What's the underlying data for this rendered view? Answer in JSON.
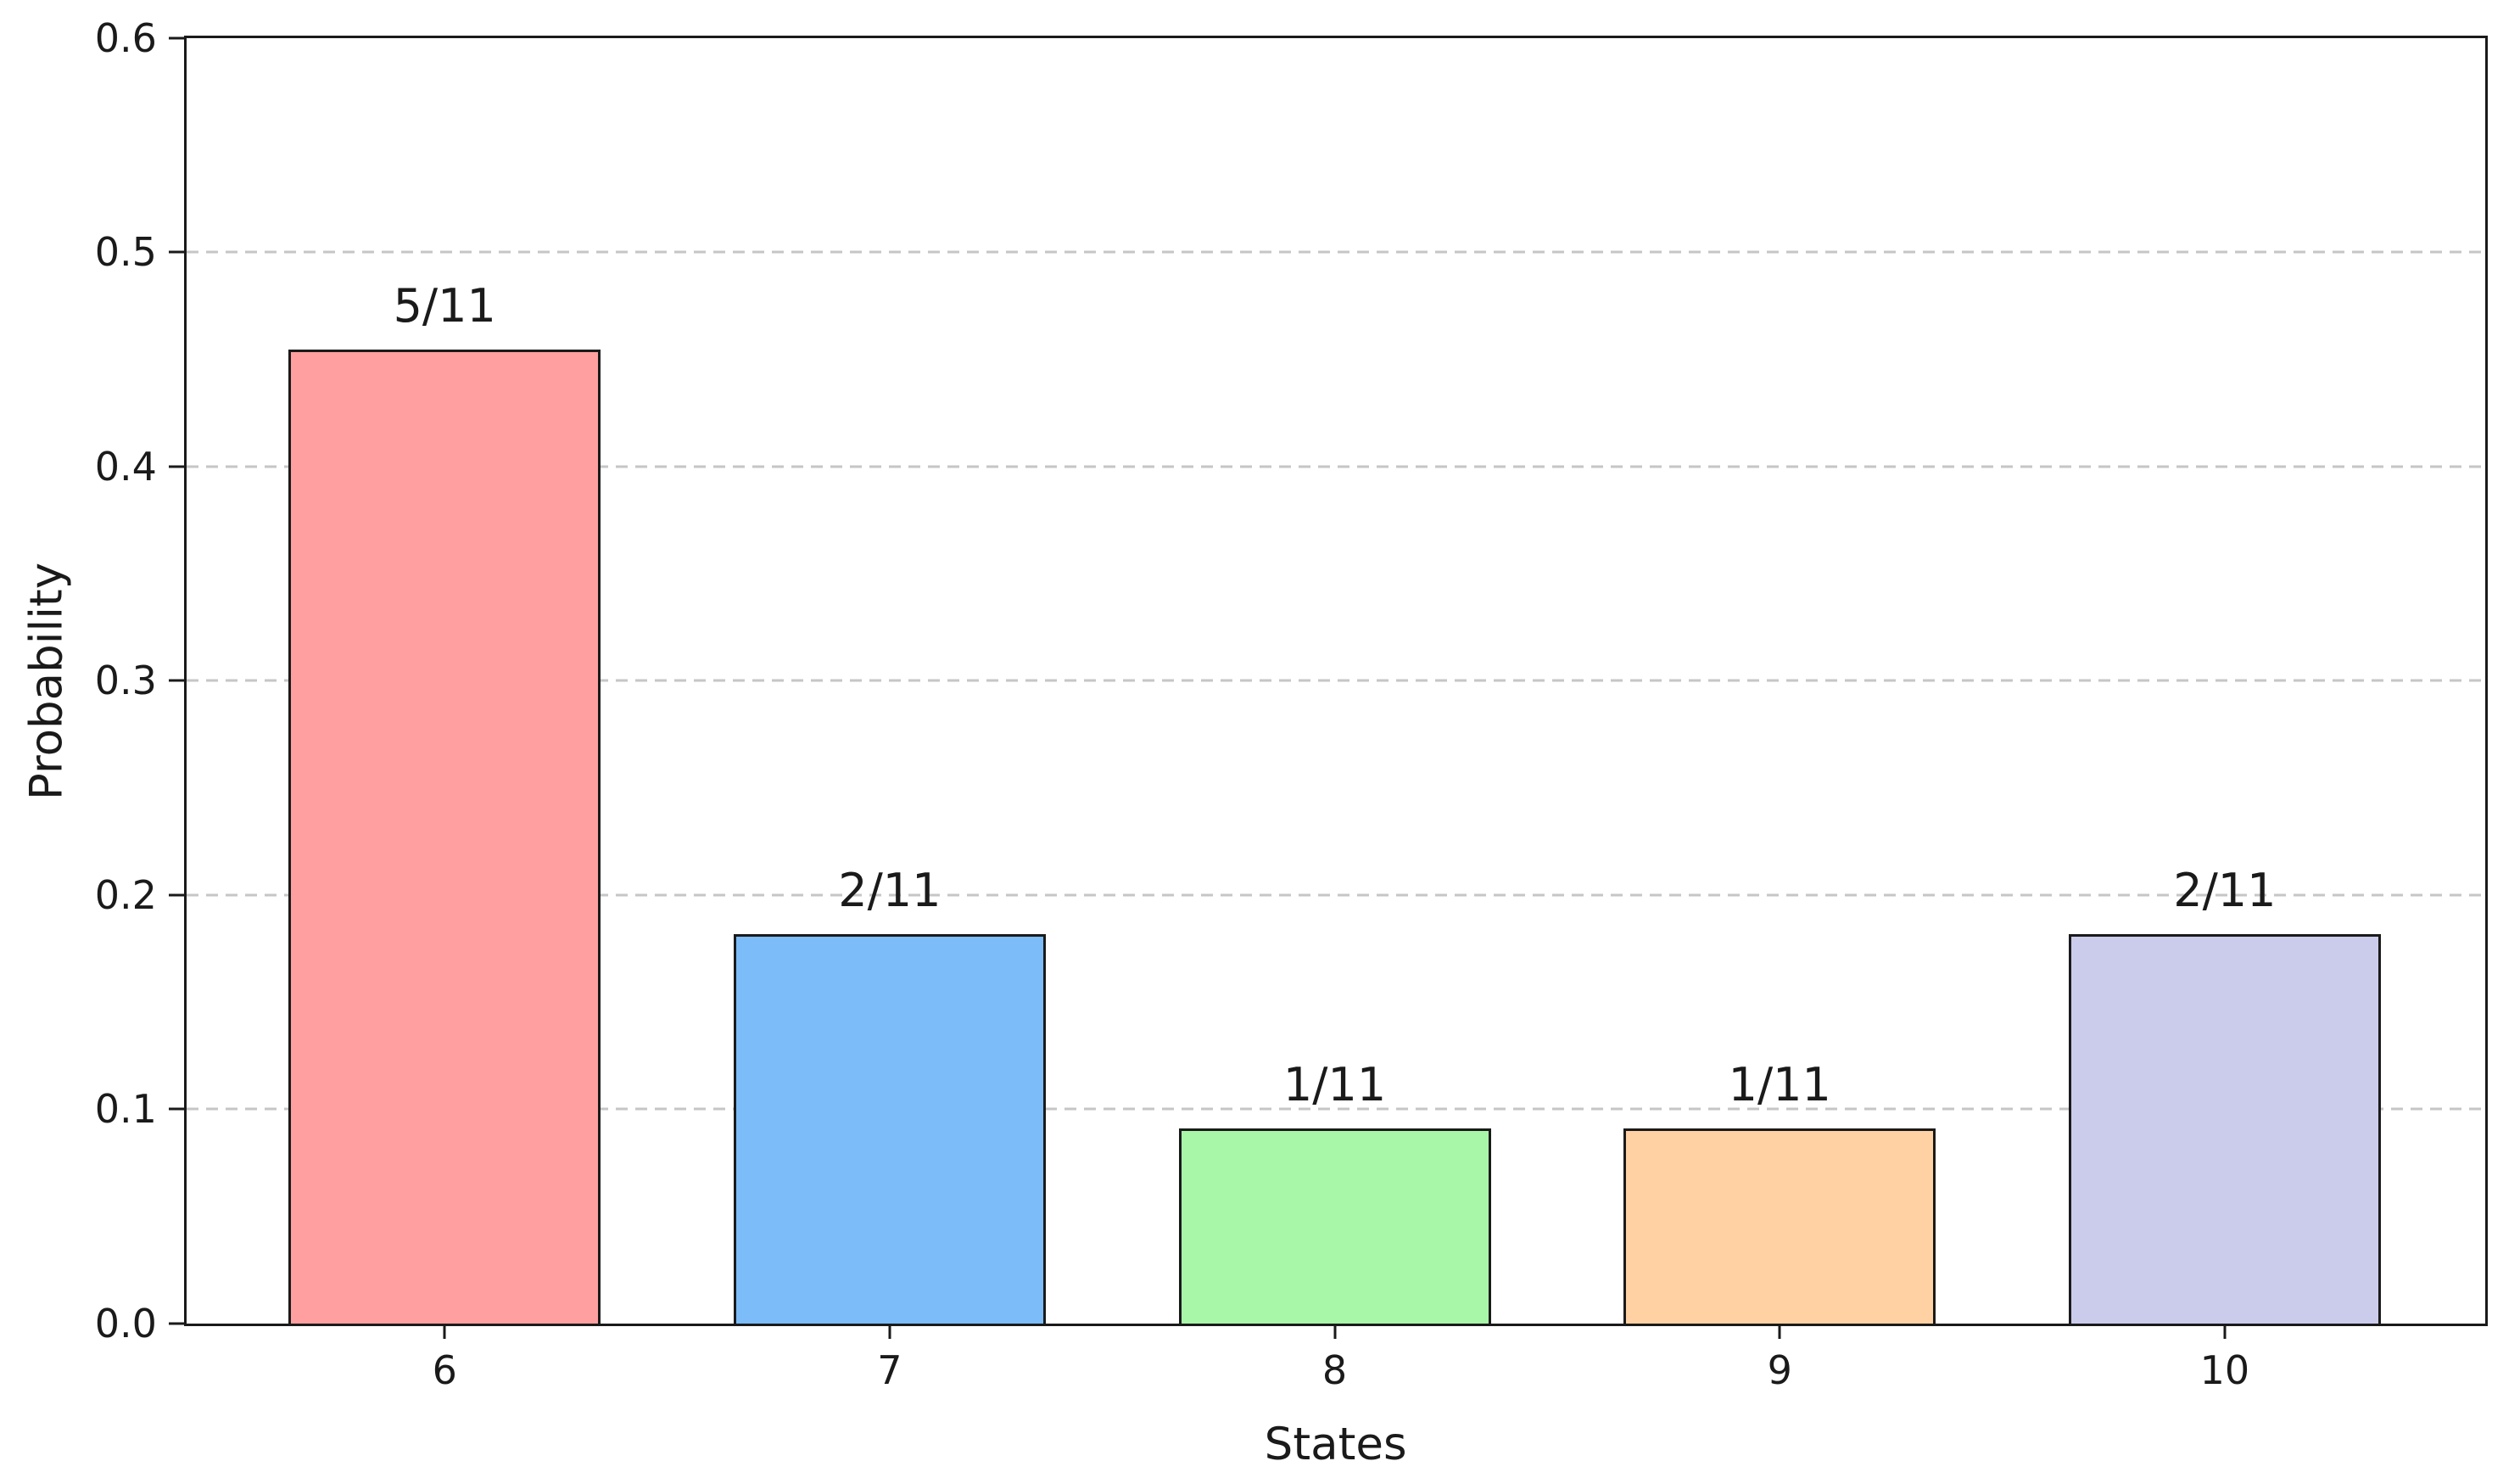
{
  "chart_data": {
    "type": "bar",
    "title": "",
    "xlabel": "States",
    "ylabel": "Probability",
    "categories": [
      "6",
      "7",
      "8",
      "9",
      "10"
    ],
    "values": [
      0.454545,
      0.181818,
      0.090909,
      0.090909,
      0.181818
    ],
    "value_labels": [
      "5/11",
      "2/11",
      "1/11",
      "1/11",
      "2/11"
    ],
    "bar_colors": [
      "#ff9f9f",
      "#7bbcf9",
      "#a8f7a8",
      "#ffd1a3",
      "#cbcbec"
    ],
    "bar_edge_color": "#1a1a1a",
    "ylim": [
      0,
      0.6
    ],
    "ytick_values": [
      0.0,
      0.1,
      0.2,
      0.3,
      0.4,
      0.5,
      0.6
    ],
    "ytick_labels": [
      "0.0",
      "0.1",
      "0.2",
      "0.3",
      "0.4",
      "0.5",
      "0.6"
    ],
    "grid": "horizontal-dashed",
    "grid_color": "#c6c6c6",
    "legend": "none",
    "background_color": "#ffffff"
  }
}
